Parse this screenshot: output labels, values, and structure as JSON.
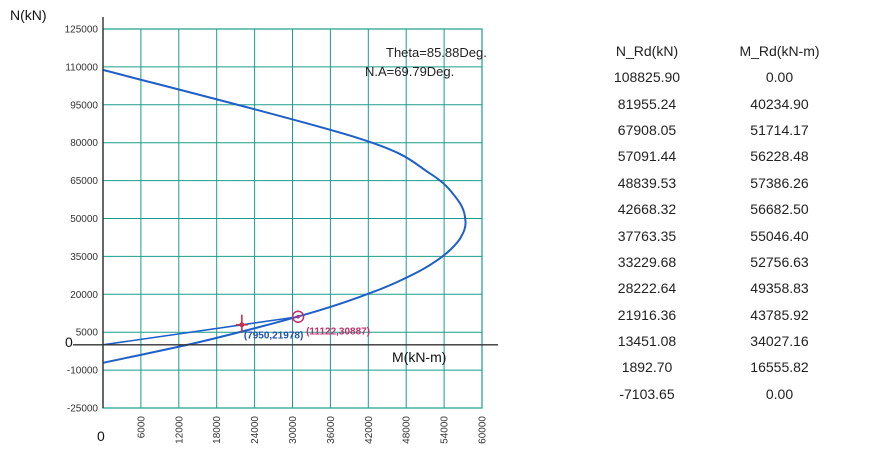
{
  "chart_data": {
    "type": "line",
    "ylabel": "N(kN)",
    "xlabel": "M(kN-m)",
    "zero_label": "0",
    "x_origin_label": "0",
    "ylim": [
      -25000,
      125000
    ],
    "xlim": [
      0,
      60000
    ],
    "y_ticks": [
      "125000",
      "110000",
      "95000",
      "80000",
      "65000",
      "50000",
      "35000",
      "20000",
      "5000",
      "-10000",
      "-25000"
    ],
    "x_ticks": [
      "6000",
      "12000",
      "18000",
      "24000",
      "30000",
      "36000",
      "42000",
      "48000",
      "54000",
      "60000"
    ],
    "grid": true,
    "annotations": [
      "Theta=85.88Deg.",
      "N.A=69.79Deg."
    ],
    "series": [
      {
        "name": "",
        "x": [
          0,
          40234.9,
          51714.17,
          56228.48,
          57386.26,
          56682.5,
          55046.4,
          52756.63,
          49358.83,
          43785.92,
          34027.16,
          16555.82,
          0
        ],
        "y": [
          108825.9,
          81955.24,
          67908.05,
          57091.44,
          48839.53,
          42668.32,
          37763.35,
          33229.68,
          28222.64,
          21916.36,
          13451.08,
          1892.7,
          -7103.65
        ]
      }
    ],
    "points": [
      {
        "label": "(11122,30887)",
        "x": 30887,
        "y": 11122,
        "color": "#c0306a"
      },
      {
        "label": "(7950,21978)",
        "x": 21978,
        "y": 7950,
        "color": "#1f4fb0"
      }
    ],
    "table": {
      "columns": [
        "N_Rd(kN)",
        "M_Rd(kN-m)"
      ],
      "rows": [
        [
          "108825.90",
          "0.00"
        ],
        [
          "81955.24",
          "40234.90"
        ],
        [
          "67908.05",
          "51714.17"
        ],
        [
          "57091.44",
          "56228.48"
        ],
        [
          "48839.53",
          "57386.26"
        ],
        [
          "42668.32",
          "56682.50"
        ],
        [
          "37763.35",
          "55046.40"
        ],
        [
          "33229.68",
          "52756.63"
        ],
        [
          "28222.64",
          "49358.83"
        ],
        [
          "21916.36",
          "43785.92"
        ],
        [
          "13451.08",
          "34027.16"
        ],
        [
          "1892.70",
          "16555.82"
        ],
        [
          "-7103.65",
          "0.00"
        ]
      ]
    }
  },
  "colors": {
    "grid": "#1a9e8a",
    "curve": "#1f5fc8",
    "axis": "#333333",
    "frame": "#1a9e8a"
  }
}
